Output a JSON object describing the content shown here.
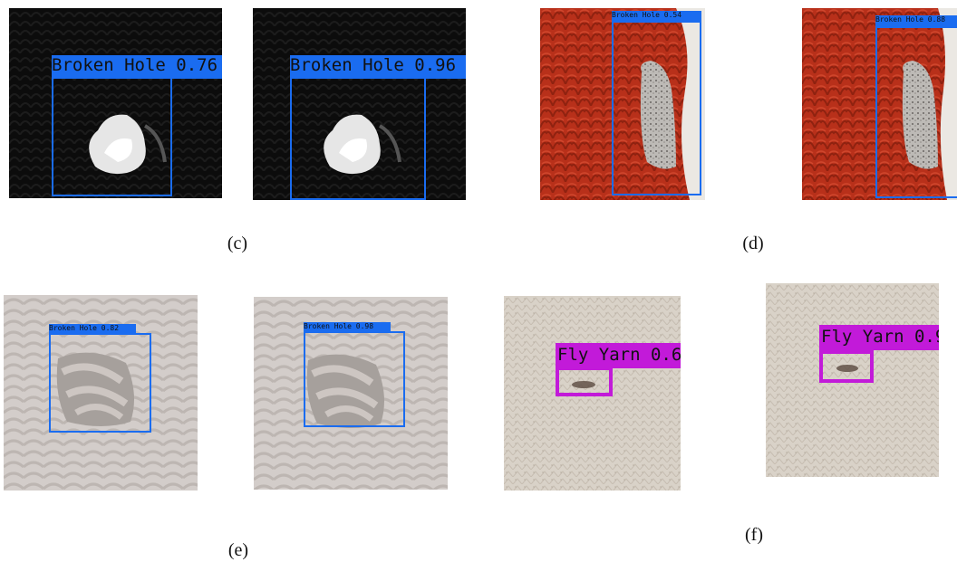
{
  "colors": {
    "broken_hole_box": "#1a6cf0",
    "fly_yarn_box": "#c21ad9"
  },
  "captions": {
    "c": "(c)",
    "d": "(d)",
    "e": "(e)",
    "f": "(f)"
  },
  "detections": {
    "c_left": "Broken Hole 0.76",
    "c_right": "Broken Hole 0.96",
    "d_left": "Broken Hole 0.54",
    "d_right": "Broken Hole 0.88",
    "e_left": "Broken Hole 0.82",
    "e_right": "Broken Hole 0.98",
    "f_left": "Fly Yarn 0.6",
    "f_right": "Fly Yarn 0.9"
  }
}
